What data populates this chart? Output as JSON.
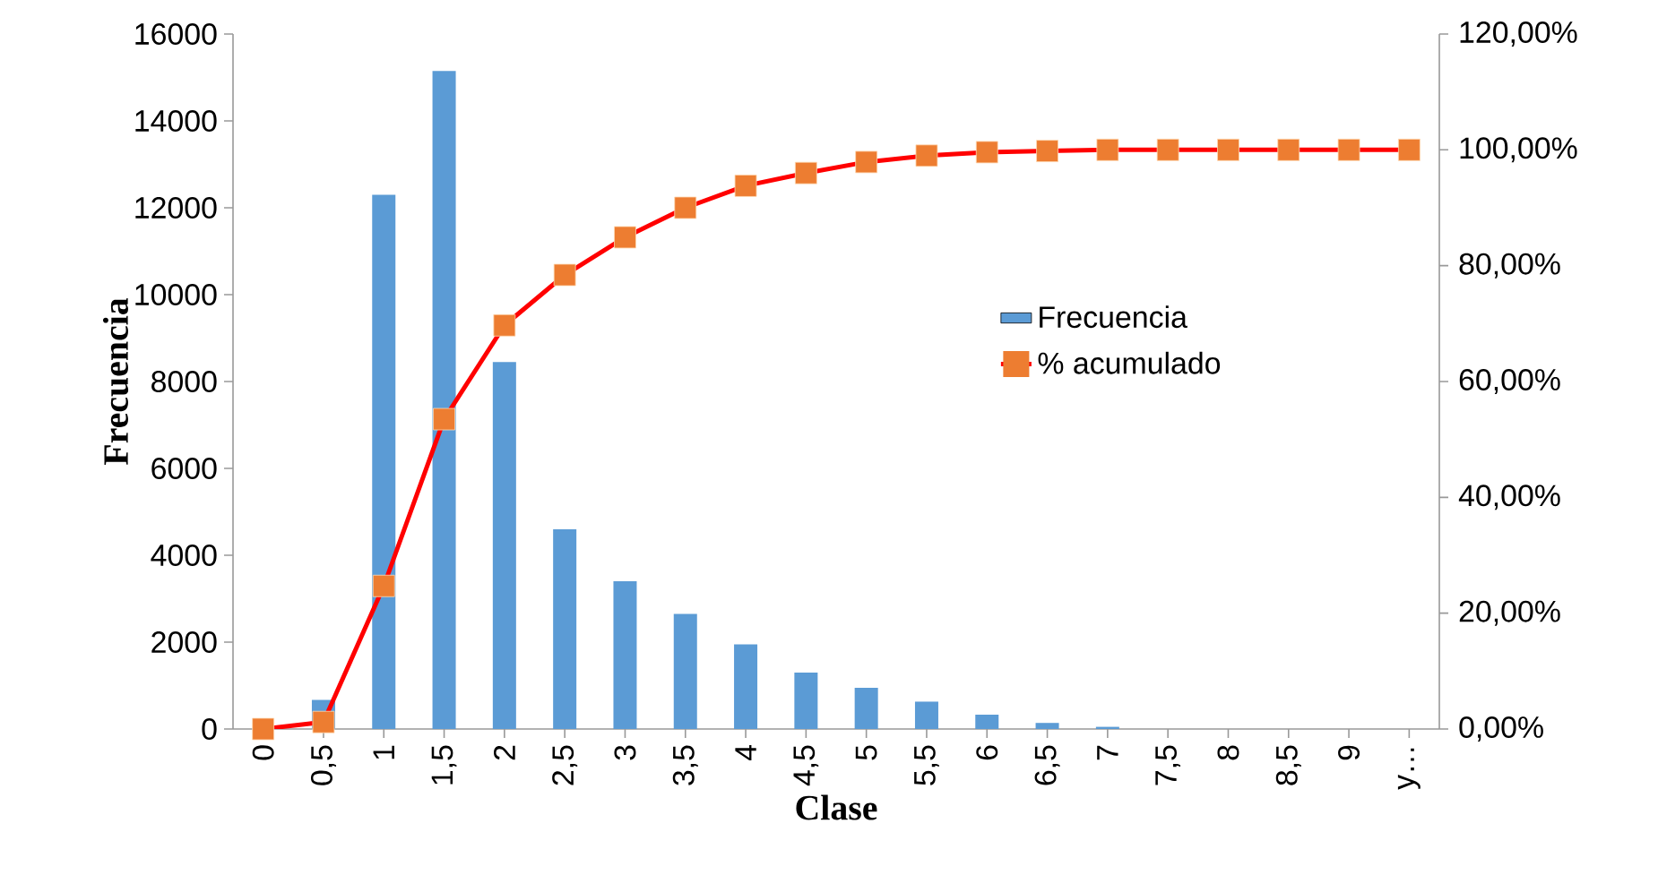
{
  "chart_data": {
    "type": "bar",
    "xlabel": "Clase",
    "ylabel": "Frecuencia",
    "categories": [
      "0",
      "0,5",
      "1",
      "1,5",
      "2",
      "2,5",
      "3",
      "3,5",
      "4",
      "4,5",
      "5",
      "5,5",
      "6",
      "6,5",
      "7",
      "7,5",
      "8",
      "8,5",
      "9",
      "y…"
    ],
    "series": [
      {
        "name": "Frecuencia",
        "color": "#5b9bd5",
        "values": [
          0,
          670,
          12300,
          15150,
          8450,
          4600,
          3400,
          2650,
          1950,
          1300,
          950,
          630,
          330,
          140,
          50,
          0,
          0,
          0,
          0,
          0
        ]
      },
      {
        "name": "% acumulado",
        "type": "line",
        "axis": "y2",
        "color": "#ff0000",
        "marker": "square",
        "colors": [
          "#ed7d31",
          "#ed7d31",
          "#ed7d31",
          "#ed7d31",
          "#ed7d31",
          "#ed7d31",
          "#ed7d31",
          "#ed7d31",
          "#ed7d31",
          "#ed7d31",
          "#ed7d31",
          "#ed7d31",
          "#ed7d31",
          "#ed7d31",
          "#ed7d31",
          "#ed7d31",
          "#ed7d31",
          "#ed7d31",
          "#ed7d31",
          "#ed7d31"
        ],
        "values": [
          0,
          1.2,
          24.7,
          53.5,
          69.7,
          78.4,
          84.9,
          90.0,
          93.8,
          96.0,
          97.9,
          99.0,
          99.6,
          99.8,
          100,
          100,
          100,
          100,
          100,
          100
        ]
      }
    ],
    "ylim": [
      0,
      16000
    ],
    "yticks": [
      0,
      2000,
      4000,
      6000,
      8000,
      10000,
      12000,
      14000,
      16000
    ],
    "y2lim": [
      0,
      120
    ],
    "y2ticks": [
      {
        "value": 0,
        "label": "0,00%"
      },
      {
        "value": 20,
        "label": "20,00%"
      },
      {
        "value": 40,
        "label": "40,00%"
      },
      {
        "value": 60,
        "label": "60,00%"
      },
      {
        "value": 80,
        "label": "80,00%"
      },
      {
        "value": 100,
        "label": "100,00%"
      },
      {
        "value": 120,
        "label": "120,00%"
      }
    ],
    "legend": "right",
    "grid": false
  }
}
